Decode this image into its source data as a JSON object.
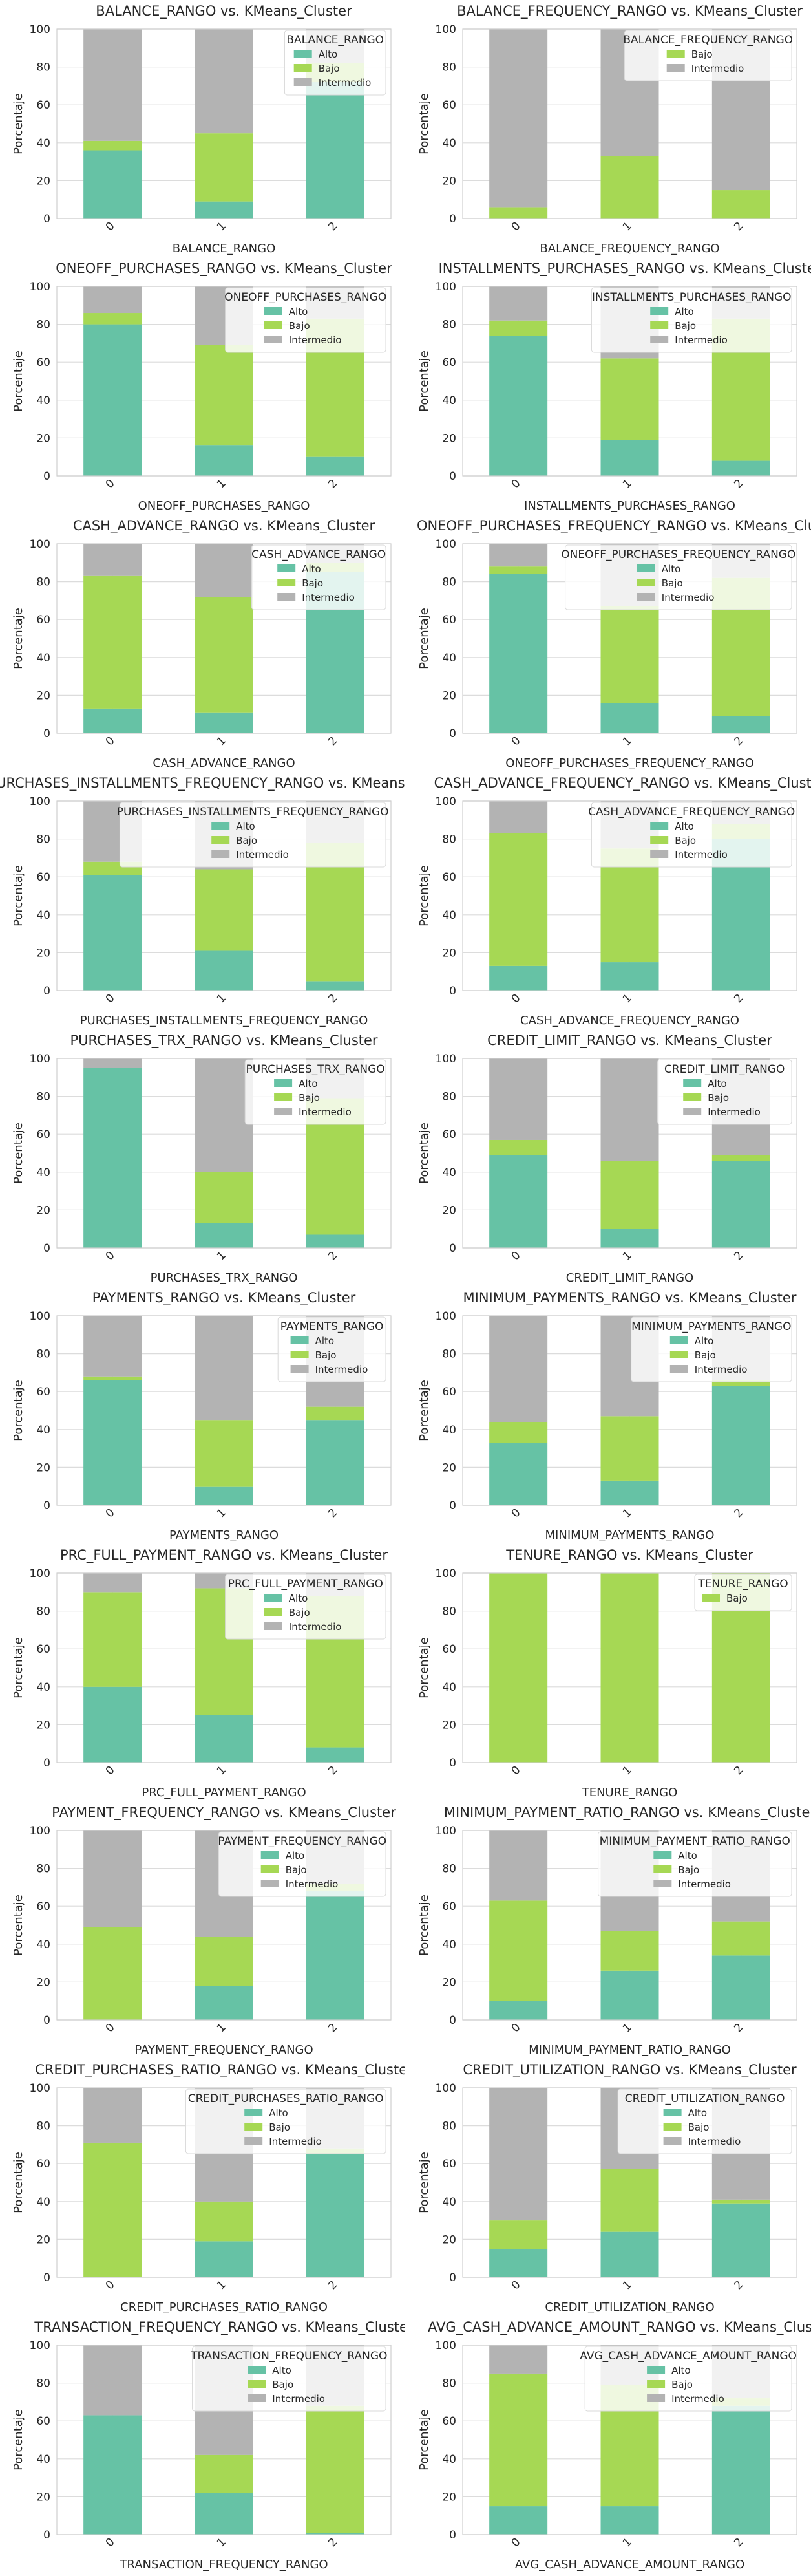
{
  "colors": {
    "Alto": "#66c2a5",
    "Bajo": "#a6d854",
    "Intermedio": "#b3b3b3"
  },
  "ylabel": "Porcentaje",
  "yticks": [
    0,
    20,
    40,
    60,
    80,
    100
  ],
  "xticks": [
    "0",
    "1",
    "2"
  ],
  "legend_placement": "upper-right",
  "chart_data": [
    {
      "type": "bar",
      "stacked": true,
      "title": "BALANCE_RANGO vs. KMeans_Cluster",
      "xlabel": "BALANCE_RANGO",
      "ylabel": "Porcentaje",
      "legend_title": "BALANCE_RANGO",
      "categories": [
        "0",
        "1",
        "2"
      ],
      "ylim": [
        0,
        100
      ],
      "series": [
        {
          "name": "Alto",
          "values": [
            36,
            9,
            72
          ]
        },
        {
          "name": "Bajo",
          "values": [
            5,
            36,
            10
          ]
        },
        {
          "name": "Intermedio",
          "values": [
            59,
            55,
            18
          ]
        }
      ]
    },
    {
      "type": "bar",
      "stacked": true,
      "title": "BALANCE_FREQUENCY_RANGO vs. KMeans_Cluster",
      "xlabel": "BALANCE_FREQUENCY_RANGO",
      "ylabel": "Porcentaje",
      "legend_title": "BALANCE_FREQUENCY_RANGO",
      "categories": [
        "0",
        "1",
        "2"
      ],
      "ylim": [
        0,
        100
      ],
      "series": [
        {
          "name": "Bajo",
          "values": [
            6,
            33,
            15
          ]
        },
        {
          "name": "Intermedio",
          "values": [
            94,
            67,
            85
          ]
        }
      ]
    },
    {
      "type": "bar",
      "stacked": true,
      "title": "ONEOFF_PURCHASES_RANGO vs. KMeans_Cluster",
      "xlabel": "ONEOFF_PURCHASES_RANGO",
      "ylabel": "Porcentaje",
      "legend_title": "ONEOFF_PURCHASES_RANGO",
      "categories": [
        "0",
        "1",
        "2"
      ],
      "ylim": [
        0,
        100
      ],
      "series": [
        {
          "name": "Alto",
          "values": [
            80,
            16,
            10
          ]
        },
        {
          "name": "Bajo",
          "values": [
            6,
            53,
            73
          ]
        },
        {
          "name": "Intermedio",
          "values": [
            14,
            31,
            17
          ]
        }
      ]
    },
    {
      "type": "bar",
      "stacked": true,
      "title": "INSTALLMENTS_PURCHASES_RANGO vs. KMeans_Cluster",
      "xlabel": "INSTALLMENTS_PURCHASES_RANGO",
      "ylabel": "Porcentaje",
      "legend_title": "INSTALLMENTS_PURCHASES_RANGO",
      "categories": [
        "0",
        "1",
        "2"
      ],
      "ylim": [
        0,
        100
      ],
      "series": [
        {
          "name": "Alto",
          "values": [
            74,
            19,
            8
          ]
        },
        {
          "name": "Bajo",
          "values": [
            8,
            43,
            75
          ]
        },
        {
          "name": "Intermedio",
          "values": [
            18,
            38,
            17
          ]
        }
      ]
    },
    {
      "type": "bar",
      "stacked": true,
      "title": "CASH_ADVANCE_RANGO vs. KMeans_Cluster",
      "xlabel": "CASH_ADVANCE_RANGO",
      "ylabel": "Porcentaje",
      "legend_title": "CASH_ADVANCE_RANGO",
      "categories": [
        "0",
        "1",
        "2"
      ],
      "ylim": [
        0,
        100
      ],
      "series": [
        {
          "name": "Alto",
          "values": [
            13,
            11,
            85
          ]
        },
        {
          "name": "Bajo",
          "values": [
            70,
            61,
            5
          ]
        },
        {
          "name": "Intermedio",
          "values": [
            17,
            28,
            10
          ]
        }
      ]
    },
    {
      "type": "bar",
      "stacked": true,
      "title": "ONEOFF_PURCHASES_FREQUENCY_RANGO vs. KMeans_Cluster",
      "xlabel": "ONEOFF_PURCHASES_FREQUENCY_RANGO",
      "ylabel": "Porcentaje",
      "legend_title": "ONEOFF_PURCHASES_FREQUENCY_RANGO",
      "categories": [
        "0",
        "1",
        "2"
      ],
      "ylim": [
        0,
        100
      ],
      "series": [
        {
          "name": "Alto",
          "values": [
            84,
            16,
            9
          ]
        },
        {
          "name": "Bajo",
          "values": [
            4,
            51,
            73
          ]
        },
        {
          "name": "Intermedio",
          "values": [
            12,
            33,
            18
          ]
        }
      ]
    },
    {
      "type": "bar",
      "stacked": true,
      "title": "PURCHASES_INSTALLMENTS_FREQUENCY_RANGO vs. KMeans_Cluster",
      "xlabel": "PURCHASES_INSTALLMENTS_FREQUENCY_RANGO",
      "ylabel": "Porcentaje",
      "legend_title": "PURCHASES_INSTALLMENTS_FREQUENCY_RANGO",
      "categories": [
        "0",
        "1",
        "2"
      ],
      "ylim": [
        0,
        100
      ],
      "series": [
        {
          "name": "Alto",
          "values": [
            61,
            21,
            5
          ]
        },
        {
          "name": "Bajo",
          "values": [
            7,
            43,
            73
          ]
        },
        {
          "name": "Intermedio",
          "values": [
            32,
            36,
            22
          ]
        }
      ]
    },
    {
      "type": "bar",
      "stacked": true,
      "title": "CASH_ADVANCE_FREQUENCY_RANGO vs. KMeans_Cluster",
      "xlabel": "CASH_ADVANCE_FREQUENCY_RANGO",
      "ylabel": "Porcentaje",
      "legend_title": "CASH_ADVANCE_FREQUENCY_RANGO",
      "categories": [
        "0",
        "1",
        "2"
      ],
      "ylim": [
        0,
        100
      ],
      "series": [
        {
          "name": "Alto",
          "values": [
            13,
            15,
            80
          ]
        },
        {
          "name": "Bajo",
          "values": [
            70,
            60,
            8
          ]
        },
        {
          "name": "Intermedio",
          "values": [
            17,
            25,
            12
          ]
        }
      ]
    },
    {
      "type": "bar",
      "stacked": true,
      "title": "PURCHASES_TRX_RANGO vs. KMeans_Cluster",
      "xlabel": "PURCHASES_TRX_RANGO",
      "ylabel": "Porcentaje",
      "legend_title": "PURCHASES_TRX_RANGO",
      "categories": [
        "0",
        "1",
        "2"
      ],
      "ylim": [
        0,
        100
      ],
      "series": [
        {
          "name": "Alto",
          "values": [
            95,
            13,
            7
          ]
        },
        {
          "name": "Bajo",
          "values": [
            0,
            27,
            72
          ]
        },
        {
          "name": "Intermedio",
          "values": [
            5,
            60,
            21
          ]
        }
      ]
    },
    {
      "type": "bar",
      "stacked": true,
      "title": "CREDIT_LIMIT_RANGO vs. KMeans_Cluster",
      "xlabel": "CREDIT_LIMIT_RANGO",
      "ylabel": "Porcentaje",
      "legend_title": "CREDIT_LIMIT_RANGO",
      "categories": [
        "0",
        "1",
        "2"
      ],
      "ylim": [
        0,
        100
      ],
      "series": [
        {
          "name": "Alto",
          "values": [
            49,
            10,
            46
          ]
        },
        {
          "name": "Bajo",
          "values": [
            8,
            36,
            3
          ]
        },
        {
          "name": "Intermedio",
          "values": [
            43,
            54,
            51
          ]
        }
      ]
    },
    {
      "type": "bar",
      "stacked": true,
      "title": "PAYMENTS_RANGO vs. KMeans_Cluster",
      "xlabel": "PAYMENTS_RANGO",
      "ylabel": "Porcentaje",
      "legend_title": "PAYMENTS_RANGO",
      "categories": [
        "0",
        "1",
        "2"
      ],
      "ylim": [
        0,
        100
      ],
      "series": [
        {
          "name": "Alto",
          "values": [
            66,
            10,
            45
          ]
        },
        {
          "name": "Bajo",
          "values": [
            2,
            35,
            7
          ]
        },
        {
          "name": "Intermedio",
          "values": [
            32,
            55,
            48
          ]
        }
      ]
    },
    {
      "type": "bar",
      "stacked": true,
      "title": "MINIMUM_PAYMENTS_RANGO vs. KMeans_Cluster",
      "xlabel": "MINIMUM_PAYMENTS_RANGO",
      "ylabel": "Porcentaje",
      "legend_title": "MINIMUM_PAYMENTS_RANGO",
      "categories": [
        "0",
        "1",
        "2"
      ],
      "ylim": [
        0,
        100
      ],
      "series": [
        {
          "name": "Alto",
          "values": [
            33,
            13,
            63
          ]
        },
        {
          "name": "Bajo",
          "values": [
            11,
            34,
            3
          ]
        },
        {
          "name": "Intermedio",
          "values": [
            56,
            53,
            34
          ]
        }
      ]
    },
    {
      "type": "bar",
      "stacked": true,
      "title": "PRC_FULL_PAYMENT_RANGO vs. KMeans_Cluster",
      "xlabel": "PRC_FULL_PAYMENT_RANGO",
      "ylabel": "Porcentaje",
      "legend_title": "PRC_FULL_PAYMENT_RANGO",
      "categories": [
        "0",
        "1",
        "2"
      ],
      "ylim": [
        0,
        100
      ],
      "series": [
        {
          "name": "Alto",
          "values": [
            40,
            25,
            8
          ]
        },
        {
          "name": "Bajo",
          "values": [
            50,
            67,
            80
          ]
        },
        {
          "name": "Intermedio",
          "values": [
            10,
            8,
            12
          ]
        }
      ]
    },
    {
      "type": "bar",
      "stacked": true,
      "title": "TENURE_RANGO vs. KMeans_Cluster",
      "xlabel": "TENURE_RANGO",
      "ylabel": "Porcentaje",
      "legend_title": "TENURE_RANGO",
      "categories": [
        "0",
        "1",
        "2"
      ],
      "ylim": [
        0,
        100
      ],
      "series": [
        {
          "name": "Bajo",
          "values": [
            100,
            100,
            100
          ]
        }
      ]
    },
    {
      "type": "bar",
      "stacked": true,
      "title": "PAYMENT_FREQUENCY_RANGO vs. KMeans_Cluster",
      "xlabel": "PAYMENT_FREQUENCY_RANGO",
      "ylabel": "Porcentaje",
      "legend_title": "PAYMENT_FREQUENCY_RANGO",
      "categories": [
        "0",
        "1",
        "2"
      ],
      "ylim": [
        0,
        100
      ],
      "series": [
        {
          "name": "Alto",
          "values": [
            0,
            18,
            68
          ]
        },
        {
          "name": "Bajo",
          "values": [
            49,
            26,
            4
          ]
        },
        {
          "name": "Intermedio",
          "values": [
            51,
            56,
            28
          ]
        }
      ]
    },
    {
      "type": "bar",
      "stacked": true,
      "title": "MINIMUM_PAYMENT_RATIO_RANGO vs. KMeans_Cluster",
      "xlabel": "MINIMUM_PAYMENT_RATIO_RANGO",
      "ylabel": "Porcentaje",
      "legend_title": "MINIMUM_PAYMENT_RATIO_RANGO",
      "categories": [
        "0",
        "1",
        "2"
      ],
      "ylim": [
        0,
        100
      ],
      "series": [
        {
          "name": "Alto",
          "values": [
            10,
            26,
            34
          ]
        },
        {
          "name": "Bajo",
          "values": [
            53,
            21,
            18
          ]
        },
        {
          "name": "Intermedio",
          "values": [
            37,
            53,
            48
          ]
        }
      ]
    },
    {
      "type": "bar",
      "stacked": true,
      "title": "CREDIT_PURCHASES_RATIO_RANGO vs. KMeans_Cluster",
      "xlabel": "CREDIT_PURCHASES_RATIO_RANGO",
      "ylabel": "Porcentaje",
      "legend_title": "CREDIT_PURCHASES_RATIO_RANGO",
      "categories": [
        "0",
        "1",
        "2"
      ],
      "ylim": [
        0,
        100
      ],
      "series": [
        {
          "name": "Alto",
          "values": [
            0,
            19,
            65
          ]
        },
        {
          "name": "Bajo",
          "values": [
            71,
            21,
            3
          ]
        },
        {
          "name": "Intermedio",
          "values": [
            29,
            60,
            32
          ]
        }
      ]
    },
    {
      "type": "bar",
      "stacked": true,
      "title": "CREDIT_UTILIZATION_RANGO vs. KMeans_Cluster",
      "xlabel": "CREDIT_UTILIZATION_RANGO",
      "ylabel": "Porcentaje",
      "legend_title": "CREDIT_UTILIZATION_RANGO",
      "categories": [
        "0",
        "1",
        "2"
      ],
      "ylim": [
        0,
        100
      ],
      "series": [
        {
          "name": "Alto",
          "values": [
            15,
            24,
            39
          ]
        },
        {
          "name": "Bajo",
          "values": [
            15,
            33,
            2
          ]
        },
        {
          "name": "Intermedio",
          "values": [
            70,
            43,
            59
          ]
        }
      ]
    },
    {
      "type": "bar",
      "stacked": true,
      "title": "TRANSACTION_FREQUENCY_RANGO vs. KMeans_Cluster",
      "xlabel": "TRANSACTION_FREQUENCY_RANGO",
      "ylabel": "Porcentaje",
      "legend_title": "TRANSACTION_FREQUENCY_RANGO",
      "categories": [
        "0",
        "1",
        "2"
      ],
      "ylim": [
        0,
        100
      ],
      "series": [
        {
          "name": "Alto",
          "values": [
            63,
            22,
            1
          ]
        },
        {
          "name": "Bajo",
          "values": [
            0,
            20,
            67
          ]
        },
        {
          "name": "Intermedio",
          "values": [
            37,
            58,
            32
          ]
        }
      ]
    },
    {
      "type": "bar",
      "stacked": true,
      "title": "AVG_CASH_ADVANCE_AMOUNT_RANGO vs. KMeans_Cluster",
      "xlabel": "AVG_CASH_ADVANCE_AMOUNT_RANGO",
      "ylabel": "Porcentaje",
      "legend_title": "AVG_CASH_ADVANCE_AMOUNT_RANGO",
      "categories": [
        "0",
        "1",
        "2"
      ],
      "ylim": [
        0,
        100
      ],
      "series": [
        {
          "name": "Alto",
          "values": [
            15,
            15,
            68
          ]
        },
        {
          "name": "Bajo",
          "values": [
            70,
            64,
            4
          ]
        },
        {
          "name": "Intermedio",
          "values": [
            15,
            21,
            28
          ]
        }
      ]
    }
  ]
}
